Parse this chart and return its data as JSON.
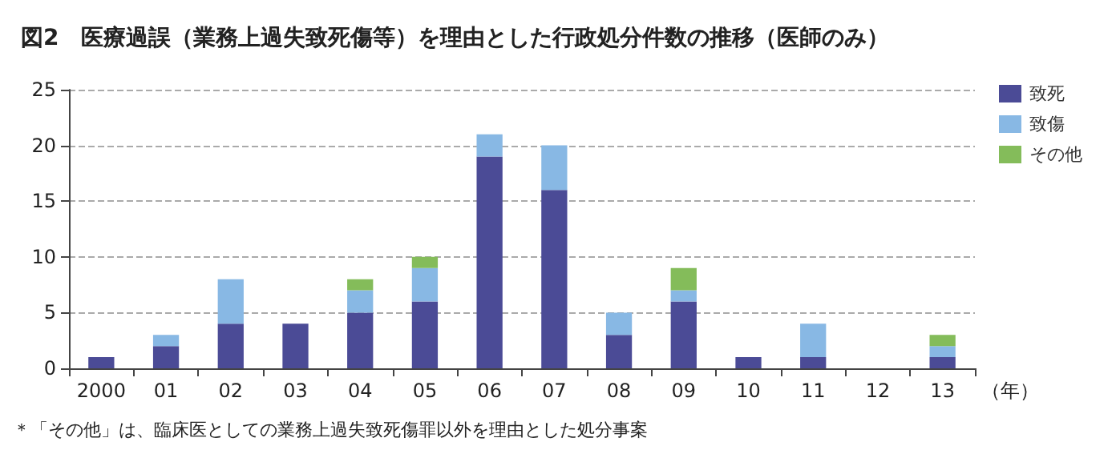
{
  "chart_data": {
    "type": "bar",
    "title": "図2　医療過誤（業務上過失致死傷等）を理由とした行政処分件数の推移（医師のみ）",
    "xlabel": "（年）",
    "categories": [
      "2000",
      "01",
      "02",
      "03",
      "04",
      "05",
      "06",
      "07",
      "08",
      "09",
      "10",
      "11",
      "12",
      "13"
    ],
    "stacked": true,
    "series": [
      {
        "name": "致死",
        "color": "#4b4b96",
        "values": [
          1,
          2,
          4,
          4,
          5,
          6,
          19,
          16,
          3,
          6,
          1,
          1,
          0,
          1
        ]
      },
      {
        "name": "致傷",
        "color": "#88b8e4",
        "values": [
          0,
          1,
          4,
          0,
          2,
          3,
          2,
          4,
          2,
          1,
          0,
          3,
          0,
          1
        ]
      },
      {
        "name": "その他",
        "color": "#84bc5a",
        "values": [
          0,
          0,
          0,
          0,
          1,
          1,
          0,
          0,
          0,
          2,
          0,
          0,
          0,
          1
        ]
      }
    ],
    "ylim": [
      0,
      25
    ],
    "yticks": [
      0,
      5,
      10,
      15,
      20,
      25
    ],
    "grid": "y",
    "legend": "top right",
    "annotations": [
      "＊「その他」は、臨床医としての業務上過失致死傷罪以外を理由とした処分事案"
    ]
  }
}
